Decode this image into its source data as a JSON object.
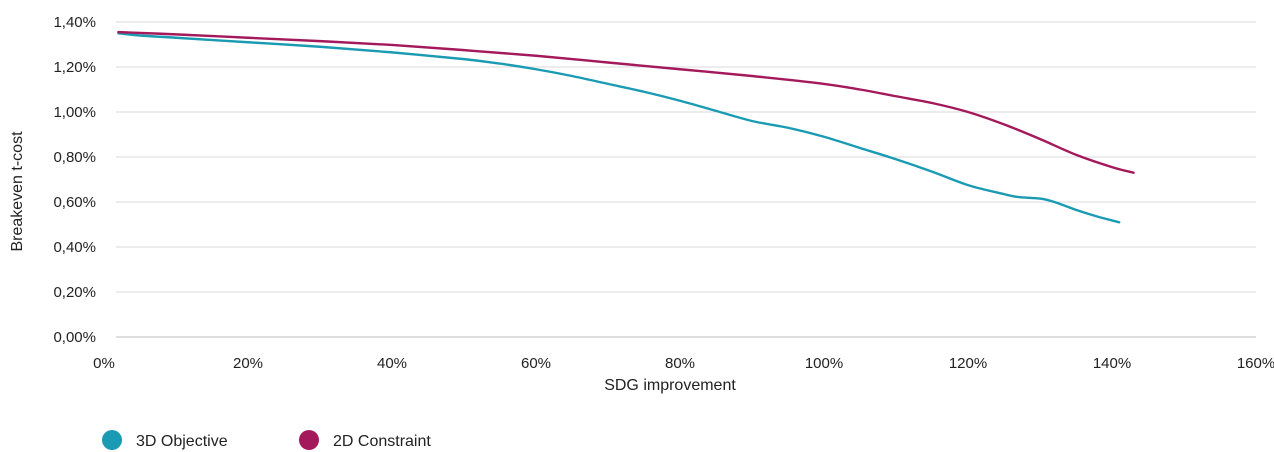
{
  "chart_data": {
    "type": "line",
    "xlabel": "SDG improvement",
    "ylabel": "Breakeven t-cost",
    "xlim": [
      0,
      160
    ],
    "ylim": [
      0,
      1.4
    ],
    "x_ticks": [
      0,
      20,
      40,
      60,
      80,
      100,
      120,
      140,
      160
    ],
    "y_ticks": [
      0,
      0.2,
      0.4,
      0.6,
      0.8,
      1.0,
      1.2,
      1.4
    ],
    "x_tick_labels": [
      "0%",
      "20%",
      "40%",
      "60%",
      "80%",
      "100%",
      "120%",
      "140%",
      "160%"
    ],
    "y_tick_labels": [
      "0,00%",
      "0,20%",
      "0,40%",
      "0,60%",
      "0,80%",
      "1,00%",
      "1,20%",
      "1,40%"
    ],
    "grid": true,
    "legend": "bottom-left",
    "series": [
      {
        "name": "3D Objective",
        "color": "#1a9bb3",
        "points": [
          [
            2,
            1.35
          ],
          [
            5,
            1.34
          ],
          [
            10,
            1.33
          ],
          [
            20,
            1.31
          ],
          [
            30,
            1.29
          ],
          [
            40,
            1.265
          ],
          [
            50,
            1.235
          ],
          [
            55,
            1.215
          ],
          [
            60,
            1.19
          ],
          [
            65,
            1.16
          ],
          [
            70,
            1.125
          ],
          [
            75,
            1.09
          ],
          [
            80,
            1.05
          ],
          [
            85,
            1.005
          ],
          [
            90,
            0.96
          ],
          [
            95,
            0.93
          ],
          [
            100,
            0.89
          ],
          [
            105,
            0.84
          ],
          [
            110,
            0.79
          ],
          [
            115,
            0.735
          ],
          [
            120,
            0.675
          ],
          [
            125,
            0.635
          ],
          [
            127,
            0.622
          ],
          [
            130,
            0.615
          ],
          [
            132,
            0.6
          ],
          [
            135,
            0.565
          ],
          [
            138,
            0.535
          ],
          [
            141,
            0.51
          ]
        ]
      },
      {
        "name": "2D Constraint",
        "color": "#a3195b",
        "points": [
          [
            2,
            1.355
          ],
          [
            10,
            1.345
          ],
          [
            20,
            1.33
          ],
          [
            30,
            1.315
          ],
          [
            40,
            1.298
          ],
          [
            50,
            1.275
          ],
          [
            60,
            1.25
          ],
          [
            70,
            1.22
          ],
          [
            80,
            1.19
          ],
          [
            90,
            1.16
          ],
          [
            100,
            1.125
          ],
          [
            105,
            1.1
          ],
          [
            110,
            1.07
          ],
          [
            115,
            1.04
          ],
          [
            120,
            1.0
          ],
          [
            125,
            0.945
          ],
          [
            130,
            0.88
          ],
          [
            135,
            0.81
          ],
          [
            140,
            0.755
          ],
          [
            143,
            0.73
          ]
        ]
      }
    ]
  }
}
